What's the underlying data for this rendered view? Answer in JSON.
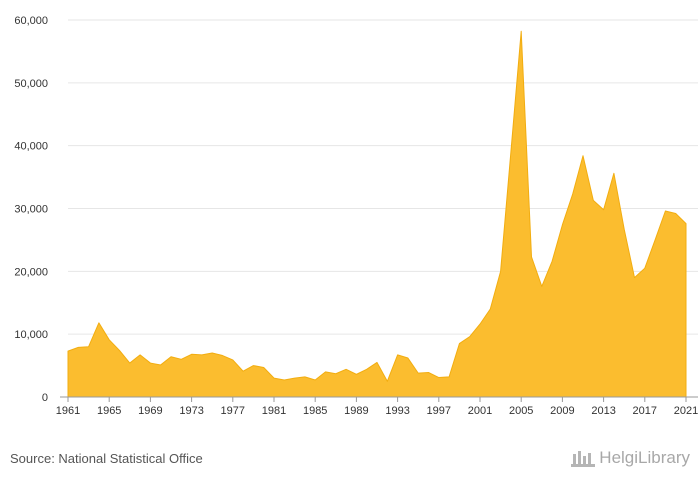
{
  "chart_data": {
    "type": "area",
    "x": [
      1961,
      1962,
      1963,
      1964,
      1965,
      1966,
      1967,
      1968,
      1969,
      1970,
      1971,
      1972,
      1973,
      1974,
      1975,
      1976,
      1977,
      1978,
      1979,
      1980,
      1981,
      1982,
      1983,
      1984,
      1985,
      1986,
      1987,
      1988,
      1989,
      1990,
      1991,
      1992,
      1993,
      1994,
      1995,
      1996,
      1997,
      1998,
      1999,
      2000,
      2001,
      2002,
      2003,
      2004,
      2005,
      2006,
      2007,
      2008,
      2009,
      2010,
      2011,
      2012,
      2013,
      2014,
      2015,
      2016,
      2017,
      2018,
      2019,
      2020,
      2021
    ],
    "series": [
      {
        "values": [
          7300,
          7900,
          8000,
          11800,
          9100,
          7400,
          5400,
          6700,
          5400,
          5100,
          6400,
          6000,
          6800,
          6700,
          7000,
          6600,
          5900,
          4100,
          5000,
          4700,
          3000,
          2700,
          3000,
          3200,
          2700,
          4000,
          3700,
          4400,
          3600,
          4400,
          5500,
          2500,
          6700,
          6200,
          3800,
          3900,
          3100,
          3200,
          8500,
          9600,
          11600,
          14000,
          20000,
          39000,
          58200,
          22300,
          17600,
          21600,
          27400,
          32300,
          38400,
          31300,
          29800,
          35600,
          26700,
          19000,
          20500,
          25000,
          29600,
          29200,
          27600
        ]
      }
    ],
    "x_ticks": [
      "1961",
      "1965",
      "1969",
      "1973",
      "1977",
      "1981",
      "1985",
      "1989",
      "1993",
      "1997",
      "2001",
      "2005",
      "2009",
      "2013",
      "2017",
      "2021"
    ],
    "y_ticks": [
      "0",
      "10,000",
      "20,000",
      "30,000",
      "40,000",
      "50,000",
      "60,000"
    ],
    "ylim": [
      0,
      60000
    ],
    "xlim": [
      1961,
      2021
    ],
    "grid": true,
    "legend": "none"
  },
  "colors": {
    "area_fill": "#fbbd2f",
    "area_stroke": "#f2ad10",
    "grid": "#e6e6e6",
    "axis": "#999999"
  },
  "footer": {
    "source": "Source: National Statistical Office",
    "brand": "HelgiLibrary",
    "brand_icon": "library-columns-icon"
  }
}
